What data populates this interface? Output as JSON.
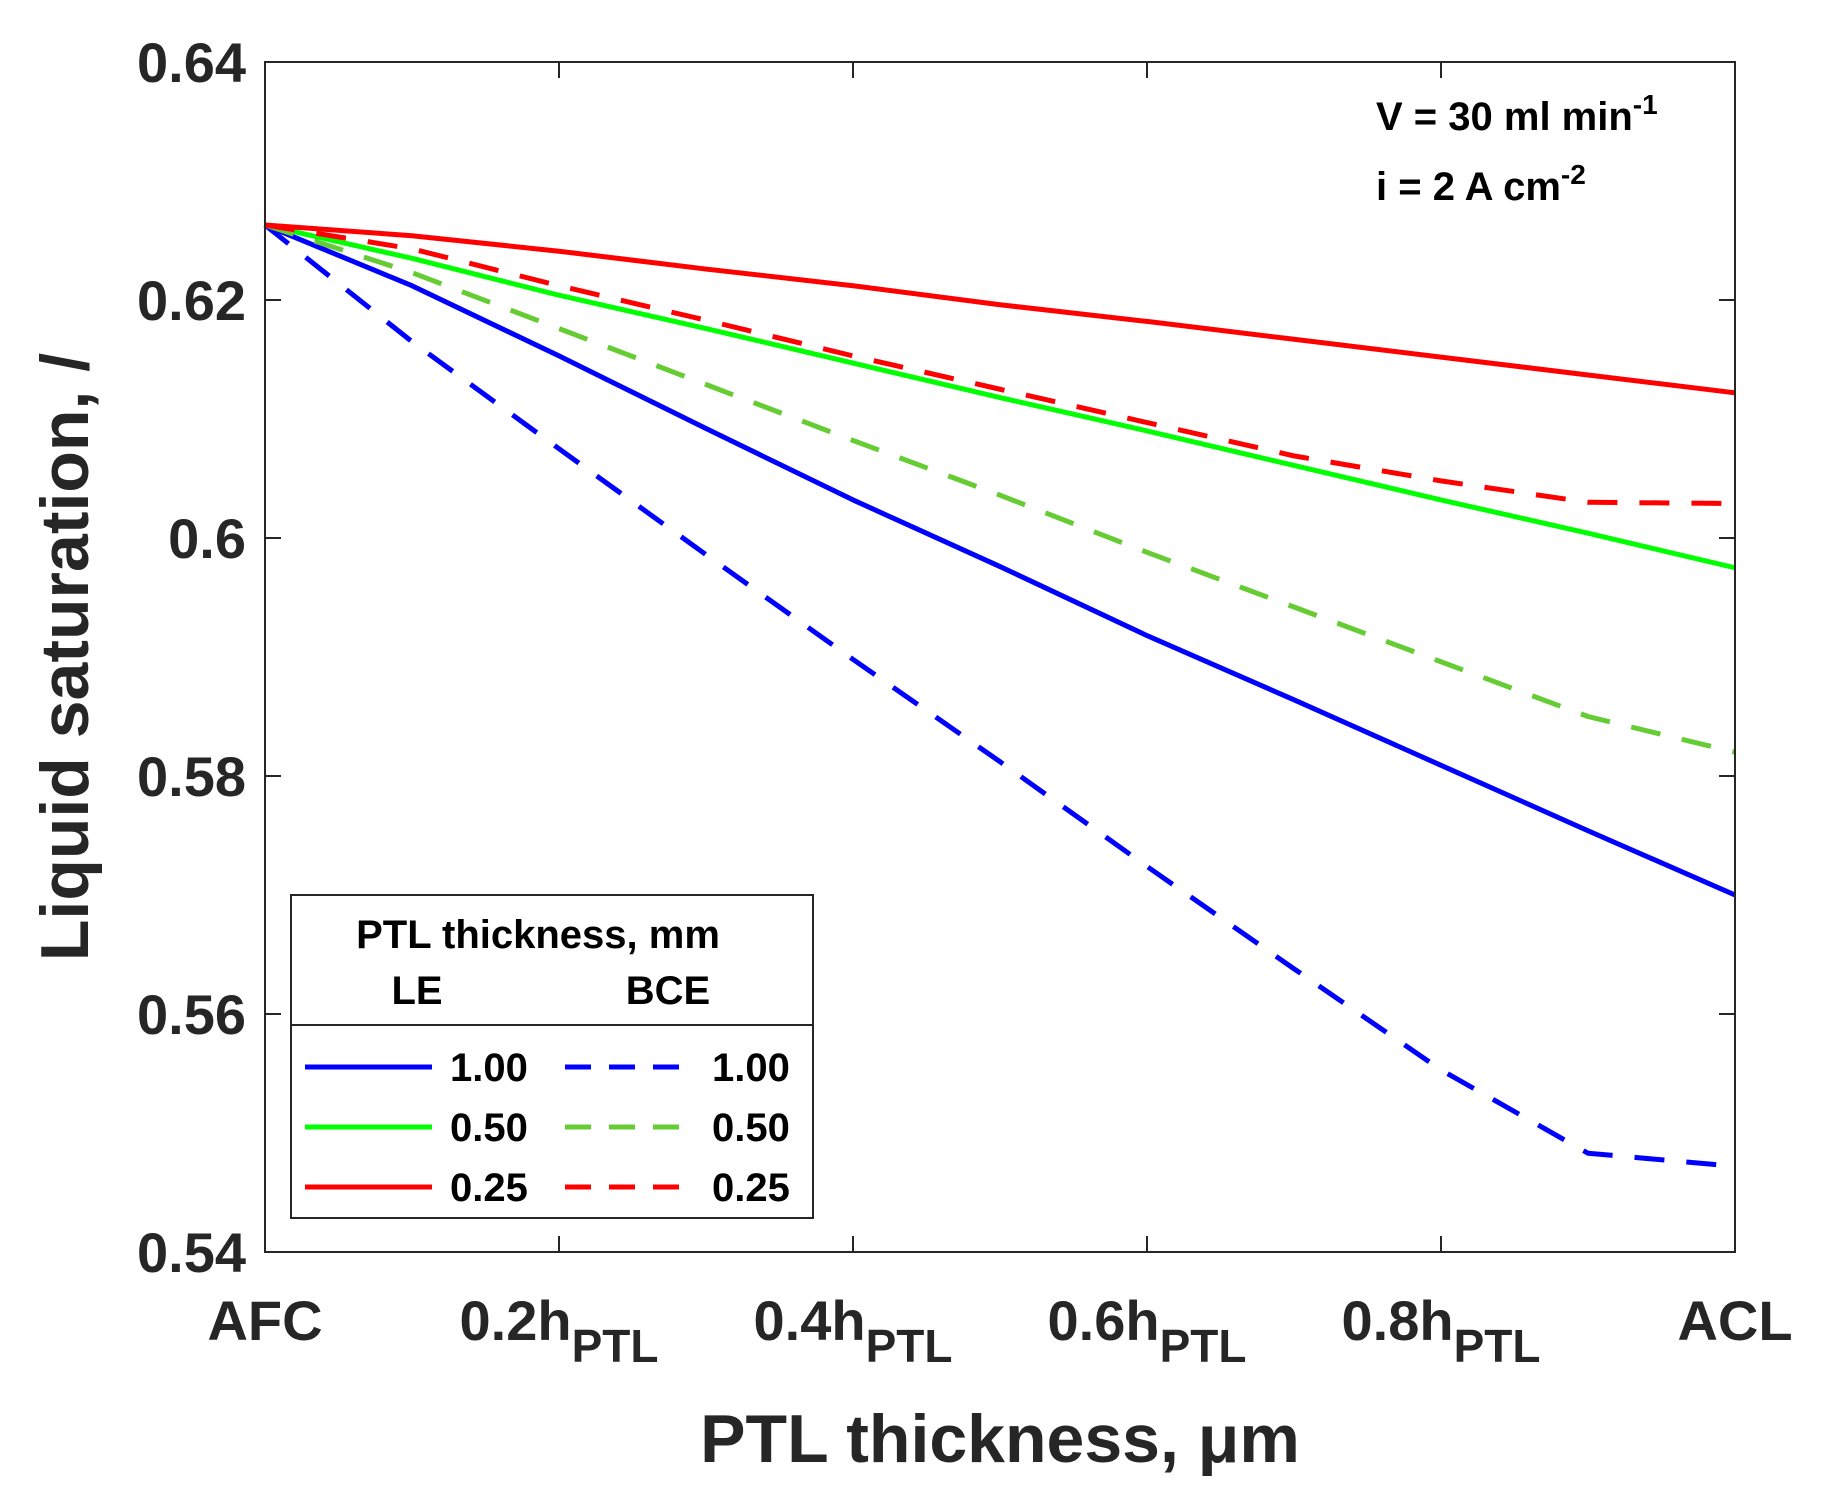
{
  "chart_data": {
    "type": "line",
    "title": "",
    "xlabel": "PTL thickness, μm",
    "ylabel": "Liquid saturation, /",
    "xlim": [
      0,
      1
    ],
    "ylim": [
      0.54,
      0.64
    ],
    "x_ticks": [
      {
        "value": 0,
        "label": "AFC",
        "sub": ""
      },
      {
        "value": 0.2,
        "label": "0.2h",
        "sub": "PTL"
      },
      {
        "value": 0.4,
        "label": "0.4h",
        "sub": "PTL"
      },
      {
        "value": 0.6,
        "label": "0.6h",
        "sub": "PTL"
      },
      {
        "value": 0.8,
        "label": "0.8h",
        "sub": "PTL"
      },
      {
        "value": 1,
        "label": "ACL",
        "sub": ""
      }
    ],
    "y_ticks": [
      {
        "value": 0.54,
        "label": "0.54"
      },
      {
        "value": 0.56,
        "label": "0.56"
      },
      {
        "value": 0.58,
        "label": "0.58"
      },
      {
        "value": 0.6,
        "label": "0.6"
      },
      {
        "value": 0.62,
        "label": "0.62"
      },
      {
        "value": 0.64,
        "label": "0.64"
      }
    ],
    "annotations": [
      {
        "text": "V = 30 ml min",
        "sup": "-1"
      },
      {
        "text": "i = 2 A cm",
        "sup": "-2"
      }
    ],
    "legend": {
      "title": "PTL thickness, mm",
      "col1": "LE",
      "col2": "BCE",
      "placement": "bottom-left"
    },
    "series": [
      {
        "name": "LE 1.00",
        "label": "1.00",
        "group": "LE",
        "color": "#0000ff",
        "dash": "solid",
        "x": [
          0,
          0.1,
          0.2,
          0.3,
          0.4,
          0.5,
          0.6,
          0.7,
          0.8,
          0.9,
          1.0
        ],
        "y": [
          0.6263,
          0.6212,
          0.6153,
          0.6092,
          0.6032,
          0.5976,
          0.5918,
          0.5864,
          0.5809,
          0.5754,
          0.57
        ]
      },
      {
        "name": "LE 0.50",
        "label": "0.50",
        "group": "LE",
        "color": "#00ff00",
        "dash": "solid",
        "x": [
          0,
          0.1,
          0.2,
          0.3,
          0.4,
          0.5,
          0.6,
          0.7,
          0.8,
          0.9,
          1.0
        ],
        "y": [
          0.6263,
          0.6235,
          0.6204,
          0.6176,
          0.6147,
          0.6118,
          0.609,
          0.6061,
          0.6032,
          0.6004,
          0.5975
        ]
      },
      {
        "name": "LE 0.25",
        "label": "0.25",
        "group": "LE",
        "color": "#ff0000",
        "dash": "solid",
        "x": [
          0,
          0.1,
          0.2,
          0.3,
          0.4,
          0.5,
          0.6,
          0.7,
          0.8,
          0.9,
          1.0
        ],
        "y": [
          0.6263,
          0.6254,
          0.6241,
          0.6226,
          0.6212,
          0.6196,
          0.6182,
          0.6167,
          0.6152,
          0.6137,
          0.6122
        ]
      },
      {
        "name": "BCE 1.00",
        "label": "1.00",
        "group": "BCE",
        "color": "#0000ff",
        "dash": "dashed",
        "x": [
          0,
          0.1,
          0.2,
          0.3,
          0.4,
          0.5,
          0.6,
          0.7,
          0.8,
          0.9,
          1.0
        ],
        "y": [
          0.6263,
          0.6165,
          0.6075,
          0.5986,
          0.5898,
          0.5812,
          0.5724,
          0.5638,
          0.5553,
          0.5483,
          0.5472
        ]
      },
      {
        "name": "BCE 0.50",
        "label": "0.50",
        "group": "BCE",
        "color": "#66cc33",
        "dash": "dashed",
        "x": [
          0,
          0.1,
          0.2,
          0.3,
          0.4,
          0.5,
          0.6,
          0.7,
          0.8,
          0.9,
          1.0
        ],
        "y": [
          0.6263,
          0.6223,
          0.6176,
          0.6129,
          0.6082,
          0.6036,
          0.5988,
          0.5942,
          0.5896,
          0.585,
          0.582
        ]
      },
      {
        "name": "BCE 0.25",
        "label": "0.25",
        "group": "BCE",
        "color": "#ff0000",
        "dash": "dashed",
        "x": [
          0,
          0.1,
          0.2,
          0.3,
          0.4,
          0.5,
          0.6,
          0.7,
          0.8,
          0.9,
          1.0
        ],
        "y": [
          0.6263,
          0.6243,
          0.6212,
          0.6183,
          0.6153,
          0.6125,
          0.6097,
          0.6069,
          0.6048,
          0.603,
          0.6029
        ]
      }
    ]
  }
}
